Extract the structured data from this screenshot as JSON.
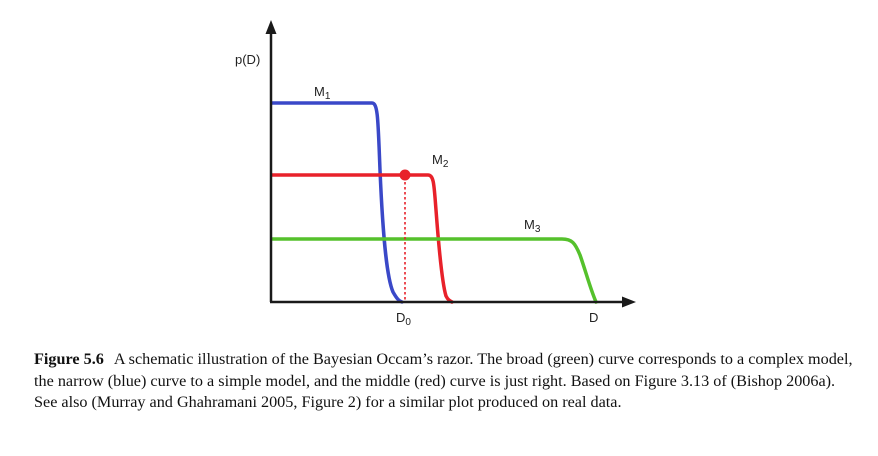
{
  "diagram": {
    "y_axis_label": "p(D)",
    "x_axis_label": "D",
    "x_marker_label": "D",
    "x_marker_sub": "0",
    "curves": [
      {
        "label": "M",
        "sub": "1",
        "color": "#3a48c8"
      },
      {
        "label": "M",
        "sub": "2",
        "color": "#e8212a"
      },
      {
        "label": "M",
        "sub": "3",
        "color": "#55c12c"
      }
    ],
    "marker_color": "#e8212a"
  },
  "caption": {
    "figure_number": "Figure 5.6",
    "text": "A schematic illustration of the Bayesian Occam’s razor. The broad (green) curve corresponds to a complex model, the narrow (blue) curve to a simple model, and the middle (red) curve is just right. Based on Figure 3.13 of (Bishop 2006a). See also (Murray and Ghahramani 2005, Figure 2) for a similar plot produced on real data."
  }
}
